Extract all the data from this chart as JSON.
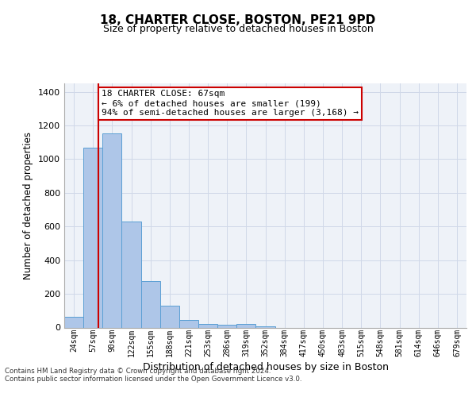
{
  "title1": "18, CHARTER CLOSE, BOSTON, PE21 9PD",
  "title2": "Size of property relative to detached houses in Boston",
  "xlabel": "Distribution of detached houses by size in Boston",
  "ylabel": "Number of detached properties",
  "categories": [
    "24sqm",
    "57sqm",
    "90sqm",
    "122sqm",
    "155sqm",
    "188sqm",
    "221sqm",
    "253sqm",
    "286sqm",
    "319sqm",
    "352sqm",
    "384sqm",
    "417sqm",
    "450sqm",
    "483sqm",
    "515sqm",
    "548sqm",
    "581sqm",
    "614sqm",
    "646sqm",
    "679sqm"
  ],
  "values": [
    62,
    1070,
    1155,
    630,
    278,
    130,
    47,
    20,
    17,
    20,
    5,
    0,
    0,
    0,
    0,
    0,
    0,
    0,
    0,
    0,
    0
  ],
  "bar_color": "#aec6e8",
  "bar_edge_color": "#5a9fd4",
  "grid_color": "#d0d8e8",
  "background_color": "#eef2f8",
  "property_line_color": "#cc0000",
  "annotation_text": "18 CHARTER CLOSE: 67sqm\n← 6% of detached houses are smaller (199)\n94% of semi-detached houses are larger (3,168) →",
  "annotation_box_color": "#ffffff",
  "annotation_box_edge": "#cc0000",
  "ylim": [
    0,
    1450
  ],
  "yticks": [
    0,
    200,
    400,
    600,
    800,
    1000,
    1200,
    1400
  ],
  "footer": "Contains HM Land Registry data © Crown copyright and database right 2024.\nContains public sector information licensed under the Open Government Licence v3.0.",
  "title1_fontsize": 11,
  "title2_fontsize": 9
}
